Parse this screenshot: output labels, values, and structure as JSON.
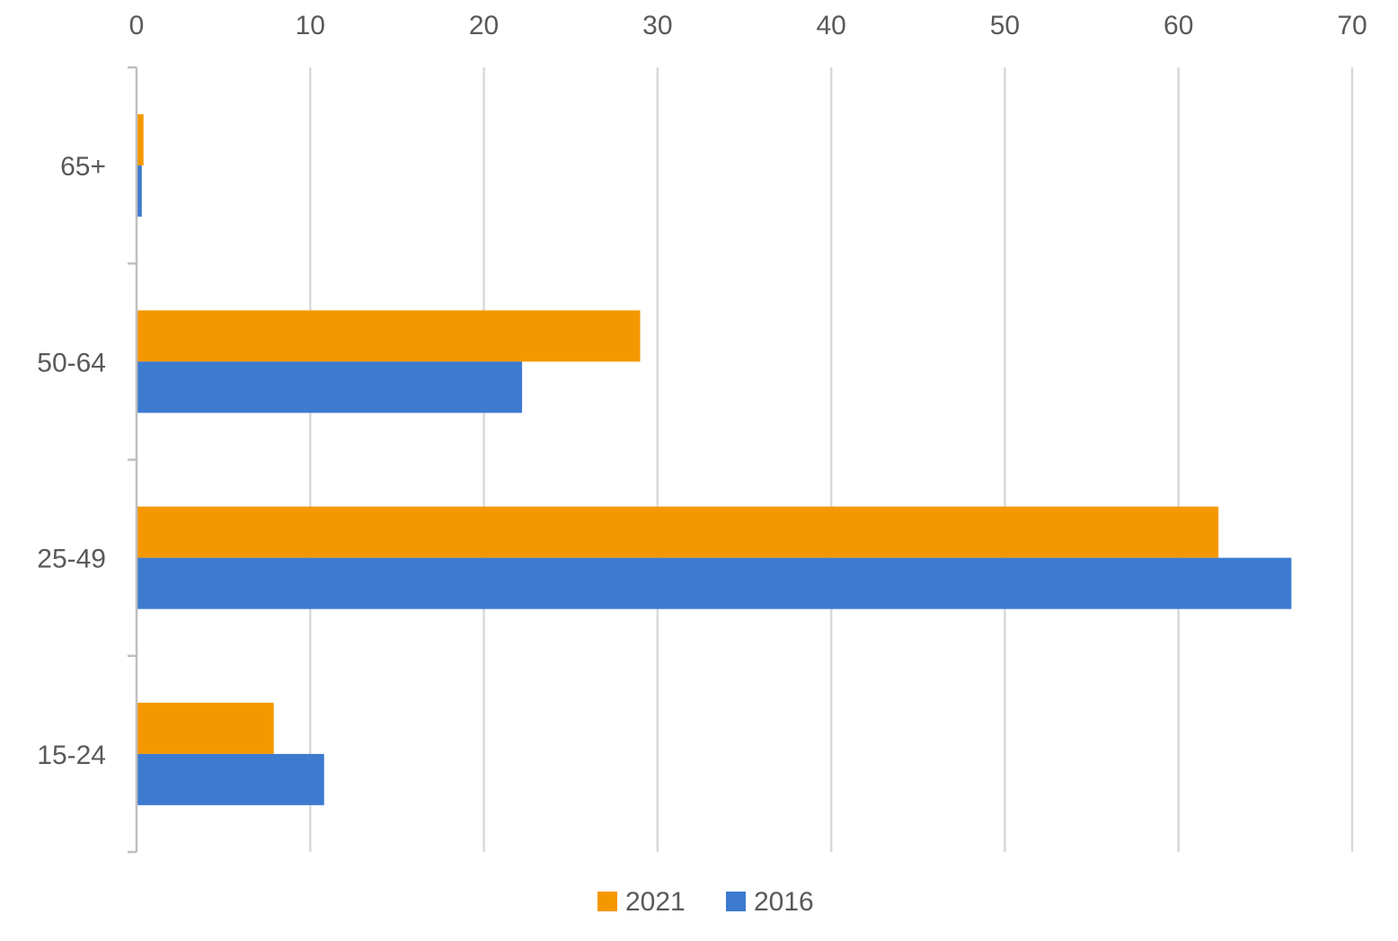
{
  "chart_data": {
    "type": "bar",
    "orientation": "horizontal",
    "categories": [
      "15-24",
      "25-49",
      "50-64",
      "65+"
    ],
    "series": [
      {
        "name": "2021",
        "values": [
          7.9,
          62.3,
          29.0,
          0.4
        ],
        "color": "#F59800"
      },
      {
        "name": "2016",
        "values": [
          10.8,
          66.5,
          22.2,
          0.3
        ],
        "color": "#3C7BD0"
      }
    ],
    "xlim": [
      0,
      70
    ],
    "x_ticks": [
      0,
      10,
      20,
      30,
      40,
      50,
      60,
      70
    ],
    "x_axis_position": "top",
    "grid": true,
    "legend_position": "bottom",
    "title": "",
    "xlabel": "",
    "ylabel": ""
  },
  "colors": {
    "grid": "#D9D9D9",
    "axis": "#BFBFBF",
    "text": "#595959"
  }
}
